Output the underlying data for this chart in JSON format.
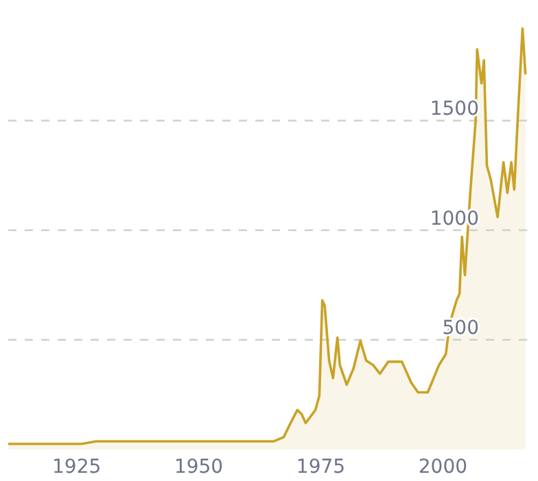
{
  "chart_data": {
    "type": "area",
    "x": [
      1911,
      1926,
      1929,
      1963.5,
      1965.4,
      1967.4,
      1968.8,
      1970.2,
      1971.1,
      1971.9,
      1973.9,
      1974.7,
      1975.3,
      1975.8,
      1976.7,
      1977.5,
      1978.4,
      1978.9,
      1980.3,
      1981.7,
      1983.1,
      1984.3,
      1985.7,
      1987.1,
      1988.8,
      1991.6,
      1993.5,
      1994.9,
      1996.9,
      1999.2,
      2000.6,
      2001.4,
      2002.8,
      2003.4,
      2003.9,
      2004.5,
      2005.6,
      2006.7,
      2007,
      2007.9,
      2008.4,
      2009,
      2009.8,
      2011.2,
      2012.4,
      2013.2,
      2014,
      2014.6,
      2015.4,
      2016.3,
      2016.9
    ],
    "series": [
      {
        "color": "#c9a227",
        "values": [
          25,
          25,
          37,
          37,
          37,
          56,
          120,
          180,
          160,
          120,
          180,
          245,
          680,
          655,
          405,
          325,
          510,
          385,
          295,
          370,
          495,
          405,
          385,
          345,
          400,
          400,
          305,
          260,
          260,
          385,
          435,
          575,
          680,
          710,
          970,
          795,
          1170,
          1500,
          1825,
          1670,
          1775,
          1295,
          1230,
          1060,
          1310,
          1170,
          1310,
          1185,
          1545,
          1920,
          1710
        ]
      }
    ],
    "xlim": [
      1911,
      2017.5
    ],
    "xticks": [
      1925,
      1950,
      1975,
      2000
    ],
    "ylim": [
      0,
      2050
    ],
    "yticks": [
      500,
      1000,
      1500
    ],
    "grid": "y",
    "line_style": "solid",
    "marker": "none"
  }
}
